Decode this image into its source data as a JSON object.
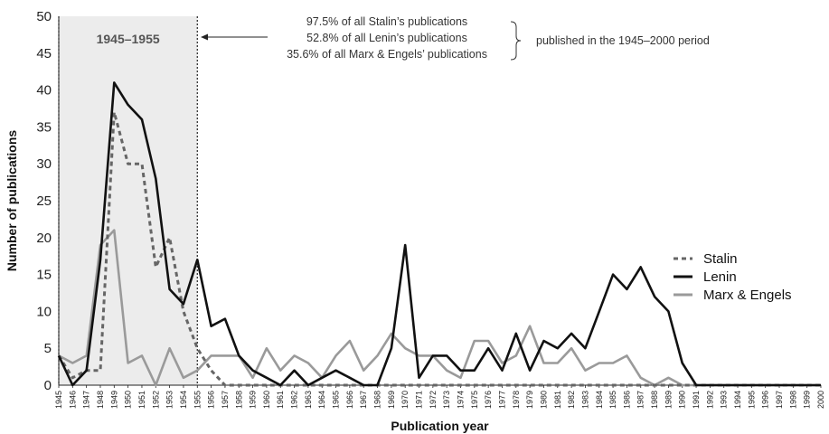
{
  "chart_data": {
    "type": "line",
    "xlabel": "Publication year",
    "ylabel": "Number of publications",
    "xlim": [
      1945,
      2000
    ],
    "ylim": [
      0,
      50
    ],
    "y_ticks": [
      0,
      5,
      10,
      15,
      20,
      25,
      30,
      35,
      40,
      45,
      50
    ],
    "x_ticks": [
      1945,
      1946,
      1947,
      1948,
      1949,
      1950,
      1951,
      1952,
      1953,
      1954,
      1955,
      1956,
      1957,
      1958,
      1959,
      1960,
      1961,
      1962,
      1963,
      1964,
      1965,
      1966,
      1967,
      1968,
      1969,
      1970,
      1971,
      1972,
      1973,
      1974,
      1975,
      1976,
      1977,
      1978,
      1979,
      1980,
      1981,
      1982,
      1983,
      1984,
      1985,
      1986,
      1987,
      1988,
      1989,
      1990,
      1991,
      1992,
      1993,
      1994,
      1995,
      1996,
      1997,
      1998,
      1999,
      2000
    ],
    "grid": "none",
    "legend_position": "right",
    "highlight": {
      "label": "1945–1955",
      "from": 1945,
      "to": 1955,
      "color": "#ececec"
    },
    "annotations": {
      "lines": [
        "97.5% of all Stalin’s publications",
        "52.8% of all Lenin’s publications",
        "35.6% of all Marx & Engels’ publications"
      ],
      "bracket_text": "published in the 1945–2000 period"
    },
    "series": [
      {
        "name": "Stalin",
        "color": "#666666",
        "style": "dashed",
        "values": [
          4,
          1,
          2,
          2,
          37,
          30,
          30,
          16,
          20,
          10,
          5,
          2,
          0,
          0,
          0,
          0,
          0,
          0,
          0,
          0,
          0,
          0,
          0,
          0,
          0,
          0,
          0,
          0,
          0,
          0,
          0,
          0,
          0,
          0,
          0,
          0,
          0,
          0,
          0,
          0,
          0,
          0,
          0,
          0,
          0,
          0,
          0,
          0,
          0,
          0,
          0,
          0,
          0,
          0,
          0,
          0
        ]
      },
      {
        "name": "Lenin",
        "color": "#111111",
        "style": "solid",
        "values": [
          4,
          0,
          2,
          17,
          41,
          38,
          36,
          28,
          13,
          11,
          17,
          8,
          9,
          4,
          2,
          1,
          0,
          2,
          0,
          1,
          2,
          1,
          0,
          0,
          5,
          19,
          1,
          4,
          4,
          2,
          2,
          5,
          2,
          7,
          2,
          6,
          5,
          7,
          5,
          10,
          15,
          13,
          16,
          12,
          10,
          3,
          0,
          0,
          0,
          0,
          0,
          0,
          0,
          0,
          0,
          0
        ]
      },
      {
        "name": "Marx & Engels",
        "color": "#9a9a9a",
        "style": "solid",
        "values": [
          4,
          3,
          4,
          19,
          21,
          3,
          4,
          0,
          5,
          1,
          2,
          4,
          4,
          4,
          1,
          5,
          2,
          4,
          3,
          1,
          4,
          6,
          2,
          4,
          7,
          5,
          4,
          4,
          2,
          1,
          6,
          6,
          3,
          4,
          8,
          3,
          3,
          5,
          2,
          3,
          3,
          4,
          1,
          0,
          1,
          0,
          0,
          0,
          0,
          0,
          0,
          0,
          0,
          0,
          0,
          0
        ]
      }
    ]
  }
}
